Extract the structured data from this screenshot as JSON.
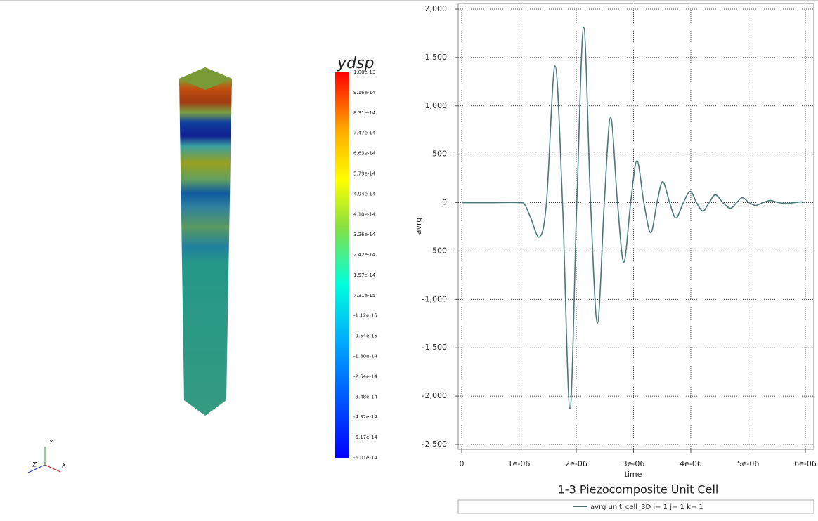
{
  "viewport": {
    "colorbar": {
      "title": "ydsp",
      "labels": [
        "1.00e-13",
        "9.16e-14",
        "8.31e-14",
        "7.47e-14",
        "6.63e-14",
        "5.79e-14",
        "4.94e-14",
        "4.10e-14",
        "3.26e-14",
        "2.42e-14",
        "1.57e-14",
        "7.31e-15",
        "-1.12e-15",
        "-9.54e-15",
        "-1.80e-14",
        "-2.64e-14",
        "-3.48e-14",
        "-4.32e-14",
        "-5.17e-14",
        "-6.01e-14"
      ]
    },
    "axes": {
      "x": "X",
      "y": "Y",
      "z": "Z"
    }
  },
  "chart_data": {
    "type": "line",
    "title": "1-3 Piezocomposite Unit Cell",
    "x_label": "time",
    "y_label": "avrg",
    "x": [
      0,
      5e-07,
      1e-06,
      1.1e-06,
      1.2e-06,
      1.36e-06,
      1.48e-06,
      1.63e-06,
      1.76e-06,
      1.89e-06,
      2.01e-06,
      2.13e-06,
      2.25e-06,
      2.37e-06,
      2.49e-06,
      2.6e-06,
      2.72e-06,
      2.83e-06,
      2.95e-06,
      3.06e-06,
      3.18e-06,
      3.3e-06,
      3.41e-06,
      3.51e-06,
      3.63e-06,
      3.74e-06,
      3.87e-06,
      3.99e-06,
      4.1e-06,
      4.21e-06,
      4.32e-06,
      4.43e-06,
      4.56e-06,
      4.69e-06,
      4.8e-06,
      4.9e-06,
      5.02e-06,
      5.13e-06,
      5.26e-06,
      5.39e-06,
      5.53e-06,
      5.68e-06,
      5.8e-06,
      5.93e-06,
      6e-06
    ],
    "series": [
      {
        "name": "avrg unit_cell_3D i= 1 j= 1 k= 1",
        "color": "#4a7878",
        "values": [
          0,
          0,
          0,
          -20,
          -150,
          -355,
          0,
          1413,
          0,
          -2130,
          0,
          1812,
          0,
          -1246,
          0,
          884,
          0,
          -616,
          0,
          435,
          0,
          -312,
          0,
          217,
          0,
          -159,
          0,
          116,
          0,
          -87,
          0,
          80,
          0,
          -58,
          0,
          51,
          0,
          -29,
          0,
          22,
          0,
          -8,
          0,
          7,
          0
        ]
      }
    ],
    "xlim": [
      0,
      6e-06
    ],
    "xticks": [
      0,
      {
        "value": 1e-06,
        "label": "1e-06"
      },
      {
        "value": 2e-06,
        "label": "2e-06"
      },
      {
        "value": 3e-06,
        "label": "3e-06"
      },
      {
        "value": 4e-06,
        "label": "4e-06"
      },
      {
        "value": 5e-06,
        "label": "5e-06"
      },
      {
        "value": 6e-06,
        "label": "6e-06"
      }
    ],
    "ylim": [
      -2500,
      2000
    ],
    "yticks": [
      {
        "value": 2000,
        "label": "2,000"
      },
      {
        "value": 1500,
        "label": "1,500"
      },
      {
        "value": 1000,
        "label": "1,000"
      },
      500,
      0,
      -500,
      {
        "value": -1000,
        "label": "-1,000"
      },
      {
        "value": -1500,
        "label": "-1,500"
      },
      {
        "value": -2000,
        "label": "-2,000"
      },
      {
        "value": -2500,
        "label": "-2,500"
      }
    ],
    "grid": true
  }
}
